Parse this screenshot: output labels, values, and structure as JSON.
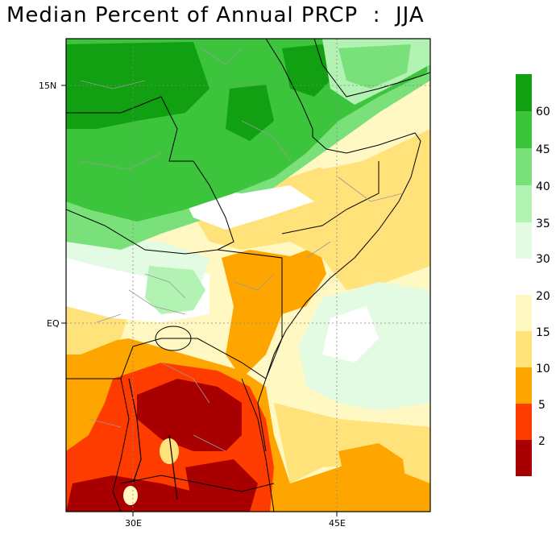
{
  "title": "Median Percent of Annual PRCP  :  JJA",
  "axes": {
    "lat_labels": [
      "15N",
      "EQ"
    ],
    "lon_labels": [
      "30E",
      "45E"
    ]
  },
  "colorbar": {
    "green_labels": [
      "60",
      "45",
      "40",
      "35",
      "30"
    ],
    "warm_labels": [
      "20",
      "15",
      "10",
      "5",
      "2"
    ],
    "green_colors": [
      "#11a011",
      "#3cc43c",
      "#7ae07a",
      "#b2f2b2",
      "#e3fbe3"
    ],
    "warm_colors": [
      "#fff8c2",
      "#ffe27a",
      "#ffa500",
      "#ff3c00",
      "#a80000"
    ]
  },
  "colors": {
    "white": "#ffffff",
    "pale_green": "#e3fbe3",
    "light_green": "#b2f2b2",
    "mid_green": "#7ae07a",
    "green": "#3cc43c",
    "dark_green": "#11a011",
    "pale_yellow": "#fff8c2",
    "yellow": "#ffe27a",
    "orange": "#ffa500",
    "red": "#ff3c00",
    "dark_red": "#a80000"
  }
}
